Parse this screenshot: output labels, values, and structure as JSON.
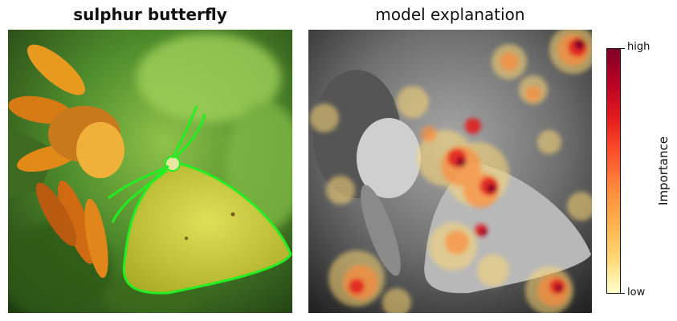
{
  "left_panel": {
    "title": "sulphur butterfly",
    "image_description_icon": "butterfly-on-flower-photo"
  },
  "right_panel": {
    "title": "model explanation",
    "image_description_icon": "grayscale-heatmap-overlay"
  },
  "colorbar": {
    "label": "Importance",
    "high_label": "high",
    "low_label": "low",
    "colors": [
      "#7f0026",
      "#b10026",
      "#e31a1c",
      "#fc4e2a",
      "#fd8d3c",
      "#feb24c",
      "#fed976",
      "#ffffcc"
    ]
  },
  "colors": {
    "outline": "#22ee22",
    "wing": "#d2d43c",
    "petal": "#e8901c",
    "background_green": "#4c8a2a"
  }
}
